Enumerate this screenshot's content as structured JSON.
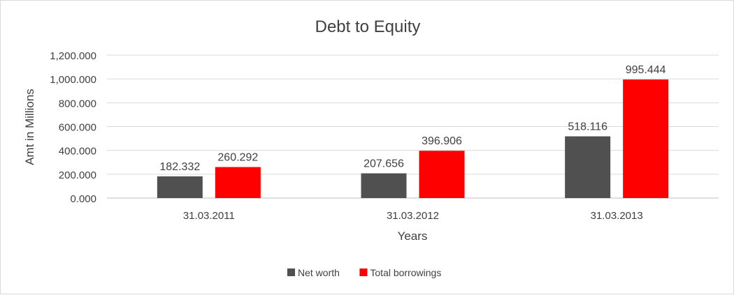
{
  "chart_data": {
    "type": "bar",
    "title": "Debt to Equity",
    "xlabel": "Years",
    "ylabel": "Amt in Millions",
    "categories": [
      "31.03.2011",
      "31.03.2012",
      "31.03.2013"
    ],
    "series": [
      {
        "name": "Net worth",
        "color": "#505050",
        "values": [
          182.332,
          207.656,
          518.116
        ],
        "labels": [
          "182.332",
          "207.656",
          "518.116"
        ]
      },
      {
        "name": "Total borrowings",
        "color": "#ff0000",
        "values": [
          260.292,
          396.906,
          995.444
        ],
        "labels": [
          "260.292",
          "396.906",
          "995.444"
        ]
      }
    ],
    "ylim": [
      0,
      1200
    ],
    "yticks": [
      0,
      200,
      400,
      600,
      800,
      1000,
      1200
    ],
    "ytick_labels": [
      "0.000",
      "200.000",
      "400.000",
      "600.000",
      "800.000",
      "1,000.000",
      "1,200.000"
    ],
    "grid": true,
    "legend_position": "bottom"
  }
}
